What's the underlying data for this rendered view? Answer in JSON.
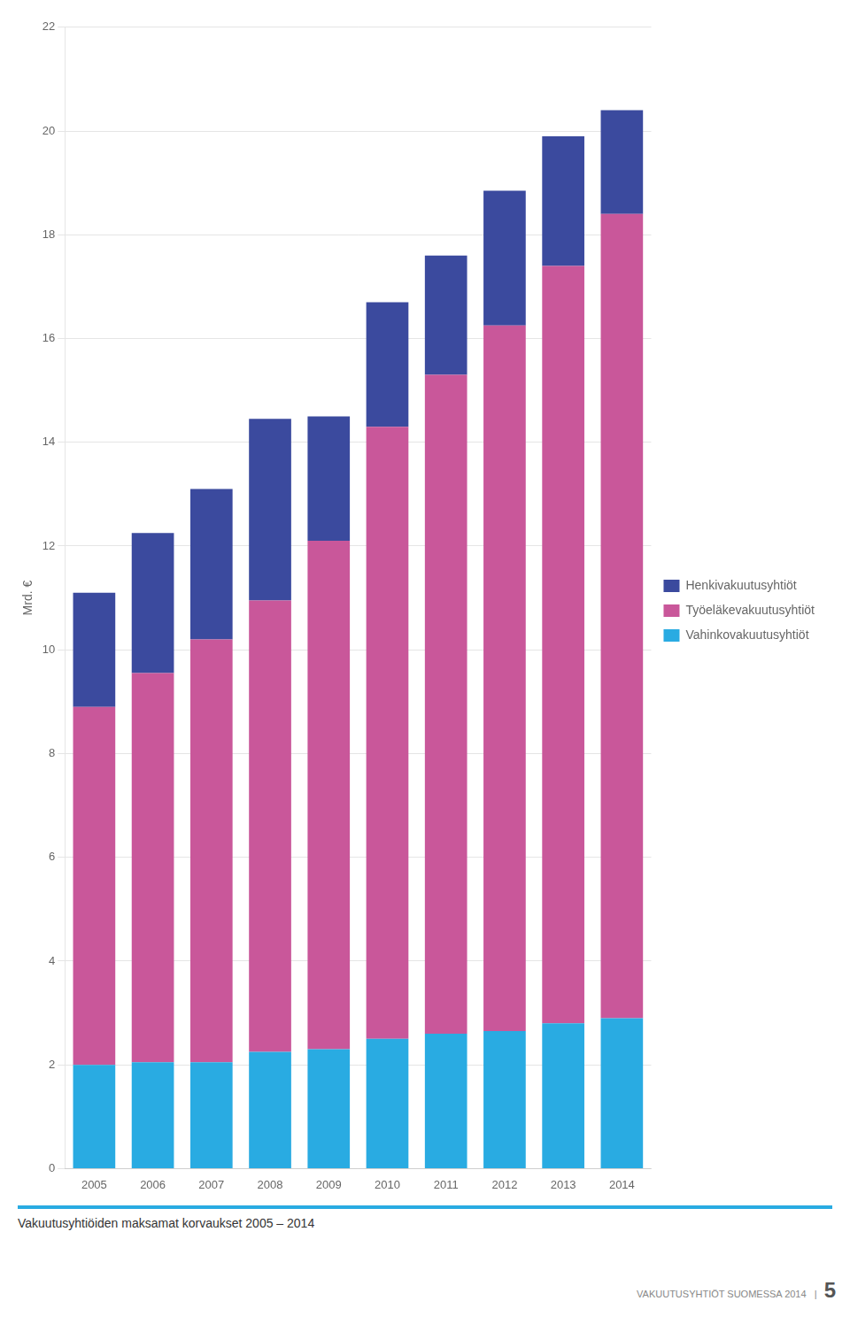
{
  "chart_data": {
    "type": "bar",
    "stacked": true,
    "title": "Vakuutusyhtiöiden maksamat korvaukset 2005 – 2014",
    "y_label": "Mrd. €",
    "categories": [
      "2005",
      "2006",
      "2007",
      "2008",
      "2009",
      "2010",
      "2011",
      "2012",
      "2013",
      "2014"
    ],
    "series": [
      {
        "name": "Vahinkovakuutusyhtiöt",
        "color": "#29ABE2",
        "values": [
          2.0,
          2.05,
          2.05,
          2.25,
          2.3,
          2.5,
          2.6,
          2.65,
          2.8,
          2.9
        ]
      },
      {
        "name": "Työeläkevakuutusyhtiöt",
        "color": "#C9579A",
        "values": [
          6.9,
          7.5,
          8.15,
          8.7,
          9.8,
          11.8,
          12.7,
          13.6,
          14.6,
          15.5
        ]
      },
      {
        "name": "Henkivakuutusyhtiöt",
        "color": "#3B4A9E",
        "values": [
          2.2,
          2.7,
          2.9,
          3.5,
          2.4,
          2.4,
          2.3,
          2.6,
          2.5,
          2.0
        ]
      }
    ],
    "ylim": [
      0,
      22
    ],
    "yticks": [
      0,
      2,
      4,
      6,
      8,
      10,
      12,
      14,
      16,
      18,
      20,
      22
    ],
    "grid": true,
    "legend": "right",
    "annotations": [
      "VAKUUTUSYHTIÖT SUOMESSA 2014   |",
      "5"
    ]
  }
}
